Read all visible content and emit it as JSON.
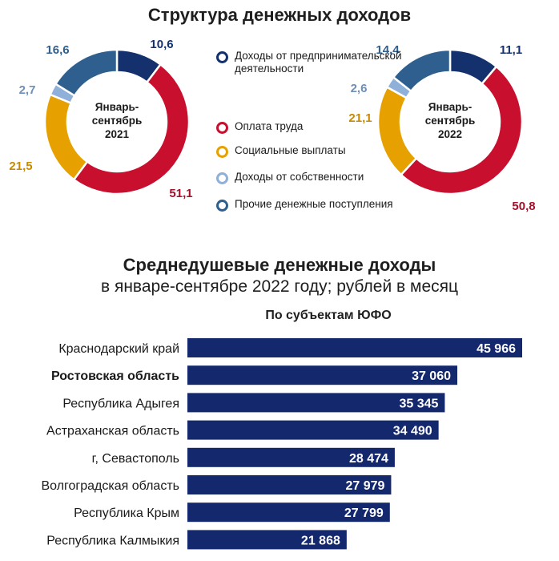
{
  "header": {
    "title": "Структура денежных доходов"
  },
  "legend": [
    {
      "label": "Доходы от предпринимательской деятельности",
      "color": "#14316e"
    },
    {
      "label": "Оплата труда",
      "color": "#c8102e"
    },
    {
      "label": "Социальные выплаты",
      "color": "#e6a100"
    },
    {
      "label": "Доходы от собственности",
      "color": "#8fb0d8"
    },
    {
      "label": "Прочие денежные поступления",
      "color": "#2f5f8f"
    }
  ],
  "chart_data": [
    {
      "type": "pie",
      "donut": true,
      "center_label": "Январь-сентябрь 2021",
      "categories": [
        "Доходы от предпринимательской деятельности",
        "Оплата труда",
        "Социальные выплаты",
        "Доходы от собственности",
        "Прочие денежные поступления"
      ],
      "values": [
        10.6,
        51.1,
        21.5,
        2.7,
        16.6
      ],
      "value_labels": [
        "10,6",
        "51,1",
        "21,5",
        "2,7",
        "16,6"
      ],
      "colors": [
        "#14316e",
        "#c8102e",
        "#e6a100",
        "#8fb0d8",
        "#2f5f8f"
      ]
    },
    {
      "type": "pie",
      "donut": true,
      "center_label": "Январь-сентябрь 2022",
      "categories": [
        "Доходы от предпринимательской деятельности",
        "Оплата труда",
        "Социальные выплаты",
        "Доходы от собственности",
        "Прочие денежные поступления"
      ],
      "values": [
        11.1,
        50.8,
        21.1,
        2.6,
        14.4
      ],
      "value_labels": [
        "11,1",
        "50,8",
        "21,1",
        "2,6",
        "14,4"
      ],
      "colors": [
        "#14316e",
        "#c8102e",
        "#e6a100",
        "#8fb0d8",
        "#2f5f8f"
      ]
    },
    {
      "type": "bar",
      "orientation": "horizontal",
      "title": "Среднедушевые денежные доходы",
      "subtitle": "в январе-сентябре 2022 году; рублей в месяц",
      "section_title": "По субъектам ЮФО",
      "categories": [
        "Краснодарский край",
        "Ростовская область",
        "Республика Адыгея",
        "Астраханская область",
        "г, Севастополь",
        "Волгоградская область",
        "Республика Крым",
        "Республика Калмыкия"
      ],
      "values": [
        45966,
        37060,
        35345,
        34490,
        28474,
        27979,
        27799,
        21868
      ],
      "value_labels": [
        "45 966",
        "37 060",
        "35 345",
        "34 490",
        "28 474",
        "27 979",
        "27 799",
        "21 868"
      ],
      "highlight": "Ростовская область",
      "bar_color": "#14286e"
    }
  ]
}
